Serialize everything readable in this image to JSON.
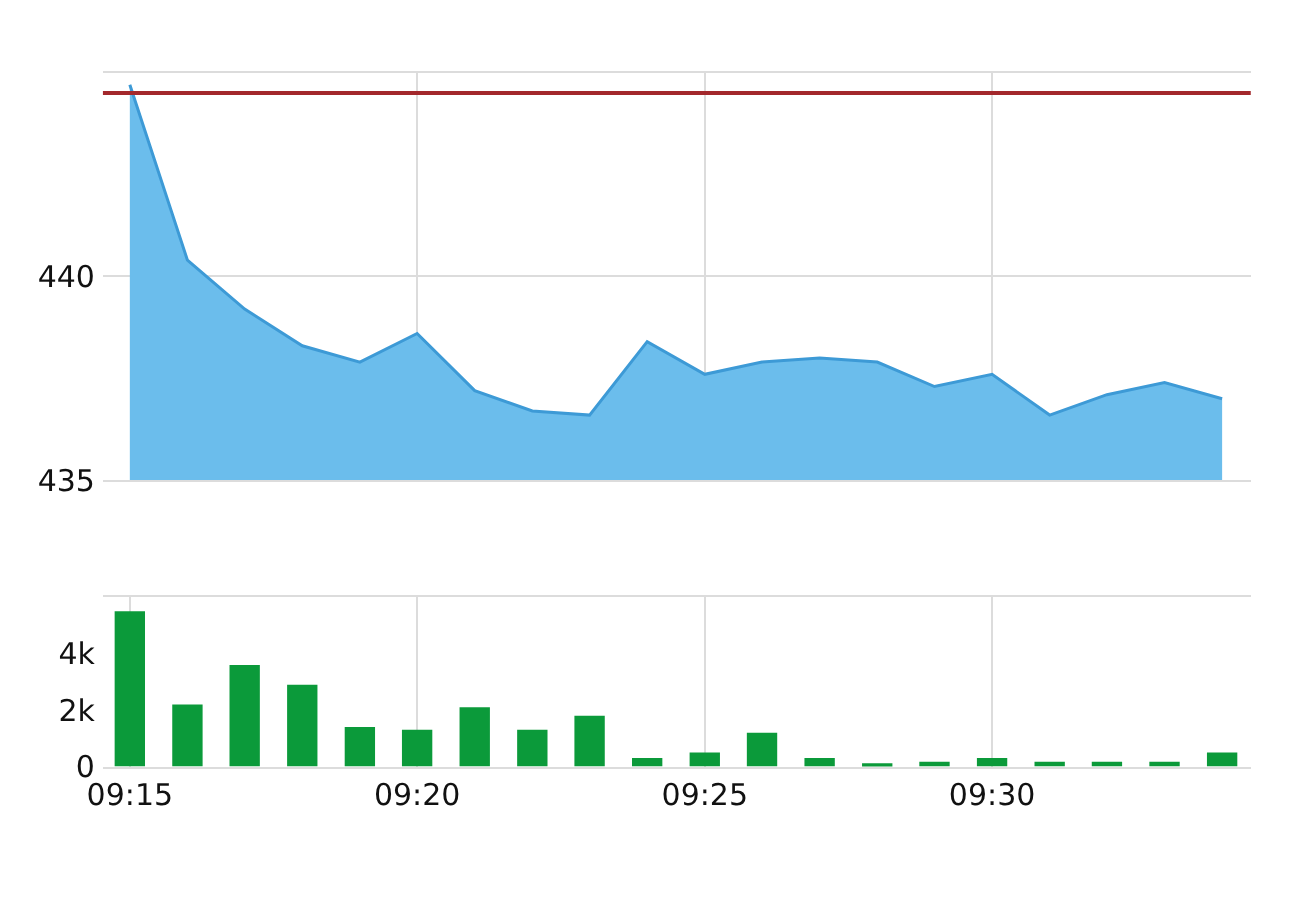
{
  "chart_data": [
    {
      "type": "area",
      "x": [
        9.25,
        9.2667,
        9.2833,
        9.3,
        9.3167,
        9.3333,
        9.35,
        9.3667,
        9.3833,
        9.4,
        9.4167,
        9.4333,
        9.45,
        9.4667,
        9.4833,
        9.5,
        9.5167,
        9.5333,
        9.55,
        9.5667
      ],
      "series": [
        {
          "color": "#6bbdec",
          "values": [
            444.7,
            440.4,
            439.2,
            438.3,
            437.9,
            438.6,
            437.2,
            436.7,
            436.6,
            438.4,
            437.6,
            437.9,
            438.0,
            437.9,
            437.3,
            437.6,
            436.6,
            437.1,
            437.4,
            437.0
          ]
        }
      ],
      "xlim": [
        9.2422,
        9.575
      ],
      "xticks": [
        {
          "value": 9.3333,
          "label": null
        },
        {
          "value": 9.4167,
          "label": null
        },
        {
          "value": 9.5,
          "label": null
        }
      ],
      "ylim": [
        435,
        445
      ],
      "yticks": [
        435,
        440,
        {
          "value": 445,
          "label": null
        }
      ],
      "ref_lines": [
        {
          "axis": "y",
          "value": 444.5,
          "color": "#a3282c"
        }
      ],
      "grid": true,
      "tick_labels": "y",
      "marker": "none"
    },
    {
      "type": "bar",
      "x": [
        9.25,
        9.2667,
        9.2833,
        9.3,
        9.3167,
        9.3333,
        9.35,
        9.3667,
        9.3833,
        9.4,
        9.4167,
        9.4333,
        9.45,
        9.4667,
        9.4833,
        9.5,
        9.5167,
        9.5333,
        9.55,
        9.5667
      ],
      "series": [
        {
          "color": "#0b9a3a",
          "values": [
            5500,
            2200,
            3600,
            2900,
            1400,
            1300,
            2100,
            1300,
            1800,
            300,
            500,
            1200,
            300,
            50,
            170,
            300,
            170,
            170,
            170,
            500
          ]
        }
      ],
      "xlim": [
        9.2422,
        9.575
      ],
      "xticks": [
        {
          "value": 9.25,
          "label": "09:15"
        },
        {
          "value": 9.3333,
          "label": "09:20"
        },
        {
          "value": 9.4167,
          "label": "09:25"
        },
        {
          "value": 9.5,
          "label": "09:30"
        }
      ],
      "ylim": [
        0,
        6000
      ],
      "yticks": [
        0,
        {
          "value": 2000,
          "label": "2k"
        },
        {
          "value": 4000,
          "label": "4k"
        }
      ],
      "grid": "x"
    }
  ]
}
